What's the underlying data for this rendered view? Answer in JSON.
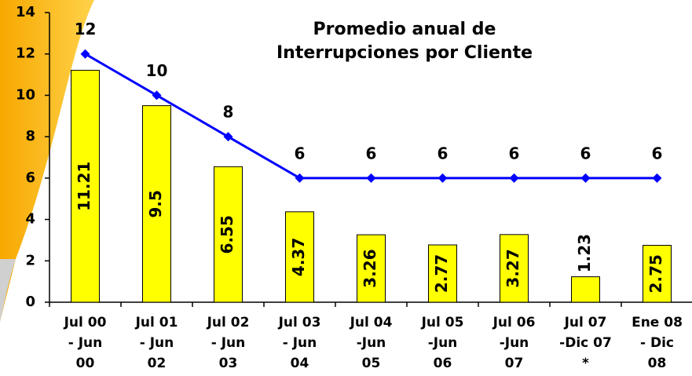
{
  "chart_data": {
    "type": "bar",
    "title": [
      "Promedio anual de",
      "Interrupciones por Cliente"
    ],
    "categories": [
      [
        "Jul 00",
        "- Jun",
        "00"
      ],
      [
        "Jul 01",
        "- Jun",
        "02"
      ],
      [
        "Jul 02",
        "- Jun",
        "03"
      ],
      [
        "Jul 03",
        "- Jun",
        "04"
      ],
      [
        "Jul 04",
        "-Jun",
        "05"
      ],
      [
        "Jul 05",
        "-Jun",
        "06"
      ],
      [
        "Jul 06",
        "-Jun",
        "07"
      ],
      [
        "Jul 07",
        "-Dic 07",
        "*"
      ],
      [
        "Ene 08",
        "- Dic",
        "08"
      ]
    ],
    "series": [
      {
        "type": "bar",
        "color": "#ffff00",
        "values": [
          11.21,
          9.5,
          6.55,
          4.37,
          3.26,
          2.77,
          3.27,
          1.23,
          2.75
        ]
      },
      {
        "type": "line",
        "color": "#0000ff",
        "values": [
          12,
          10,
          8,
          6,
          6,
          6,
          6,
          6,
          6
        ]
      }
    ],
    "ylim": [
      0,
      14
    ],
    "yticks": [
      0,
      2,
      4,
      6,
      8,
      10,
      12,
      14
    ]
  }
}
